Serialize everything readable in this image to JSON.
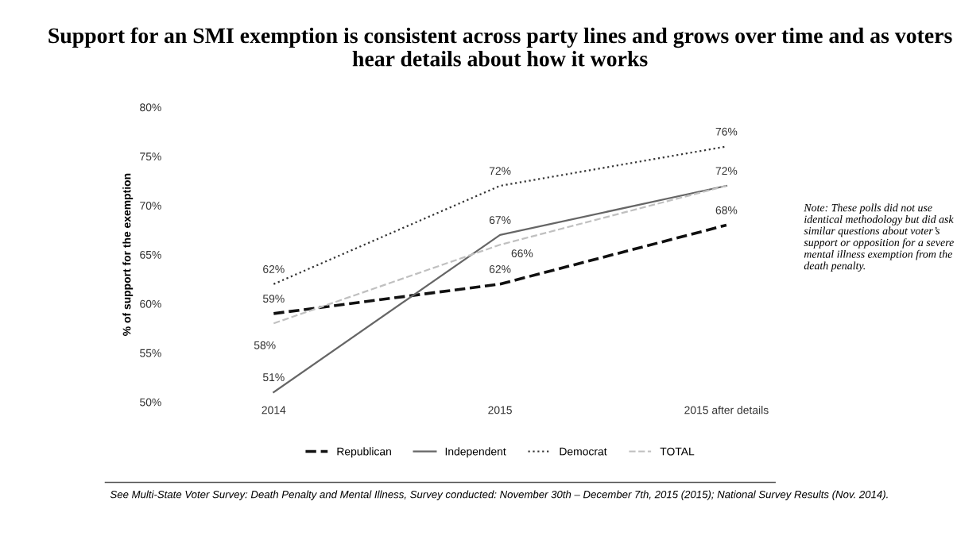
{
  "chart_data": {
    "type": "line",
    "title": "Support for an SMI exemption is consistent across party lines and grows over time and as voters hear details about how it works",
    "ylabel": "% of support for the exemption",
    "categories": [
      "2014",
      "2015",
      "2015 after details"
    ],
    "series": [
      {
        "name": "Republican",
        "color": "#111111",
        "line_style": "dashed",
        "values": [
          59,
          62,
          68
        ],
        "value_labels": [
          "59%",
          "62%",
          "68%"
        ]
      },
      {
        "name": "Independent",
        "color": "#666666",
        "line_style": "solid",
        "values": [
          51,
          67,
          72
        ],
        "value_labels": [
          "51%",
          "67%",
          "72%"
        ]
      },
      {
        "name": "Democrat",
        "color": "#333333",
        "line_style": "dotted",
        "values": [
          62,
          72,
          76
        ],
        "value_labels": [
          "62%",
          "72%",
          "76%"
        ]
      },
      {
        "name": "TOTAL",
        "color": "#c0c0c0",
        "line_style": "dashed",
        "values": [
          58,
          66,
          72
        ],
        "value_labels": [
          "58%",
          "66%",
          null
        ]
      }
    ],
    "ylim": [
      50,
      80
    ],
    "yticks": [
      {
        "value": 50,
        "label": "50%"
      },
      {
        "value": 55,
        "label": "55%"
      },
      {
        "value": 60,
        "label": "60%"
      },
      {
        "value": 65,
        "label": "65%"
      },
      {
        "value": 70,
        "label": "70%"
      },
      {
        "value": 75,
        "label": "75%"
      },
      {
        "value": 80,
        "label": "80%"
      }
    ],
    "grid": false,
    "legend": "bottom",
    "marker": "none",
    "annotations": [
      "Note: These polls did not use identical methodology but did ask similar questions about voter’s support or opposition for a severe mental illness exemption from the death penalty.",
      "See Multi-State Voter Survey: Death Penalty and Mental Illness, Survey conducted: November 30th – December 7th, 2015 (2015); National Survey Results (Nov. 2014)."
    ]
  }
}
